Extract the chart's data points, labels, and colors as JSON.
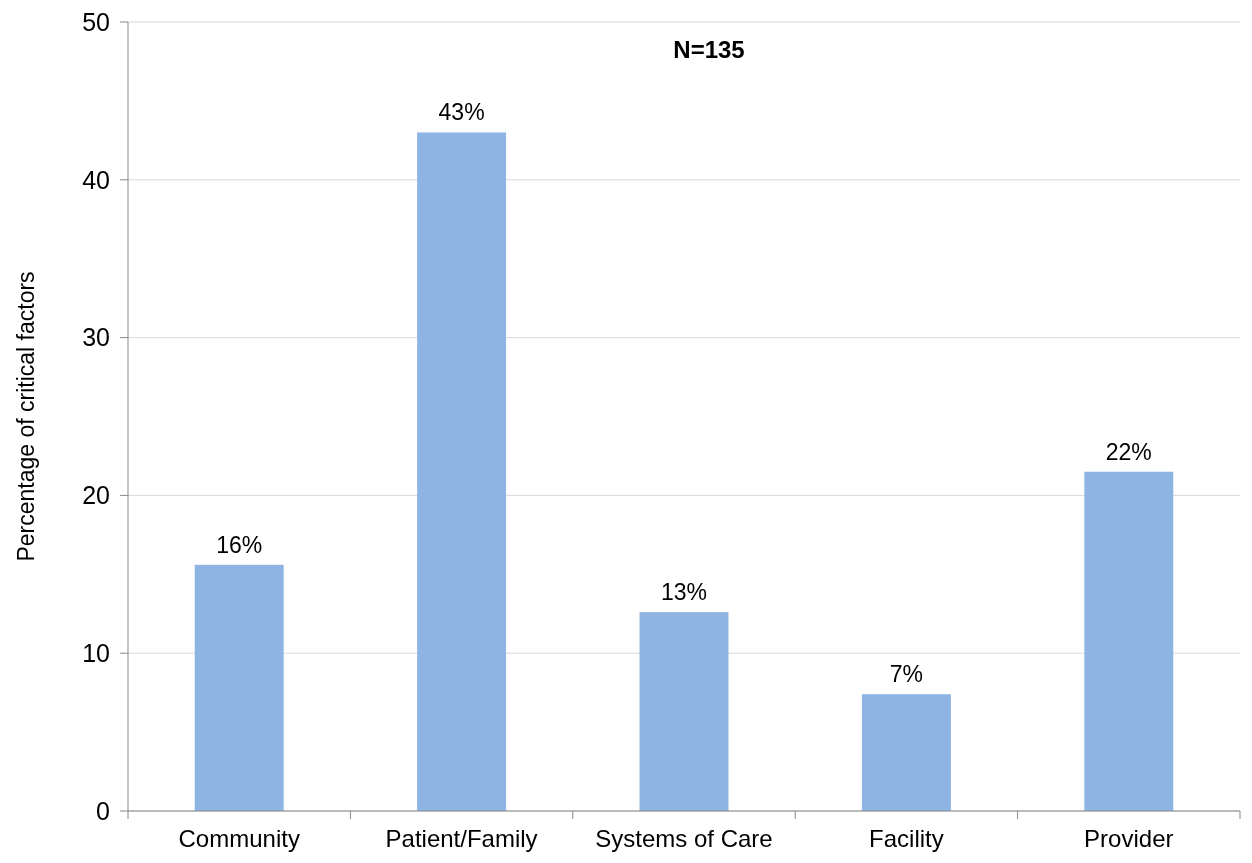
{
  "chart_data": {
    "type": "bar",
    "title": "N=135",
    "ylabel": "Percentage of critical factors",
    "categories": [
      "Community",
      "Patient/Family",
      "Systems of Care",
      "Facility",
      "Provider"
    ],
    "values": [
      15.6,
      43,
      12.6,
      7.4,
      21.5
    ],
    "value_labels": [
      "16%",
      "43%",
      "13%",
      "7%",
      "22%"
    ],
    "color": "#8eb4e3",
    "ylim": [
      0,
      50
    ],
    "yticks": [
      0,
      10,
      20,
      30,
      40,
      50
    ],
    "grid": "y"
  }
}
